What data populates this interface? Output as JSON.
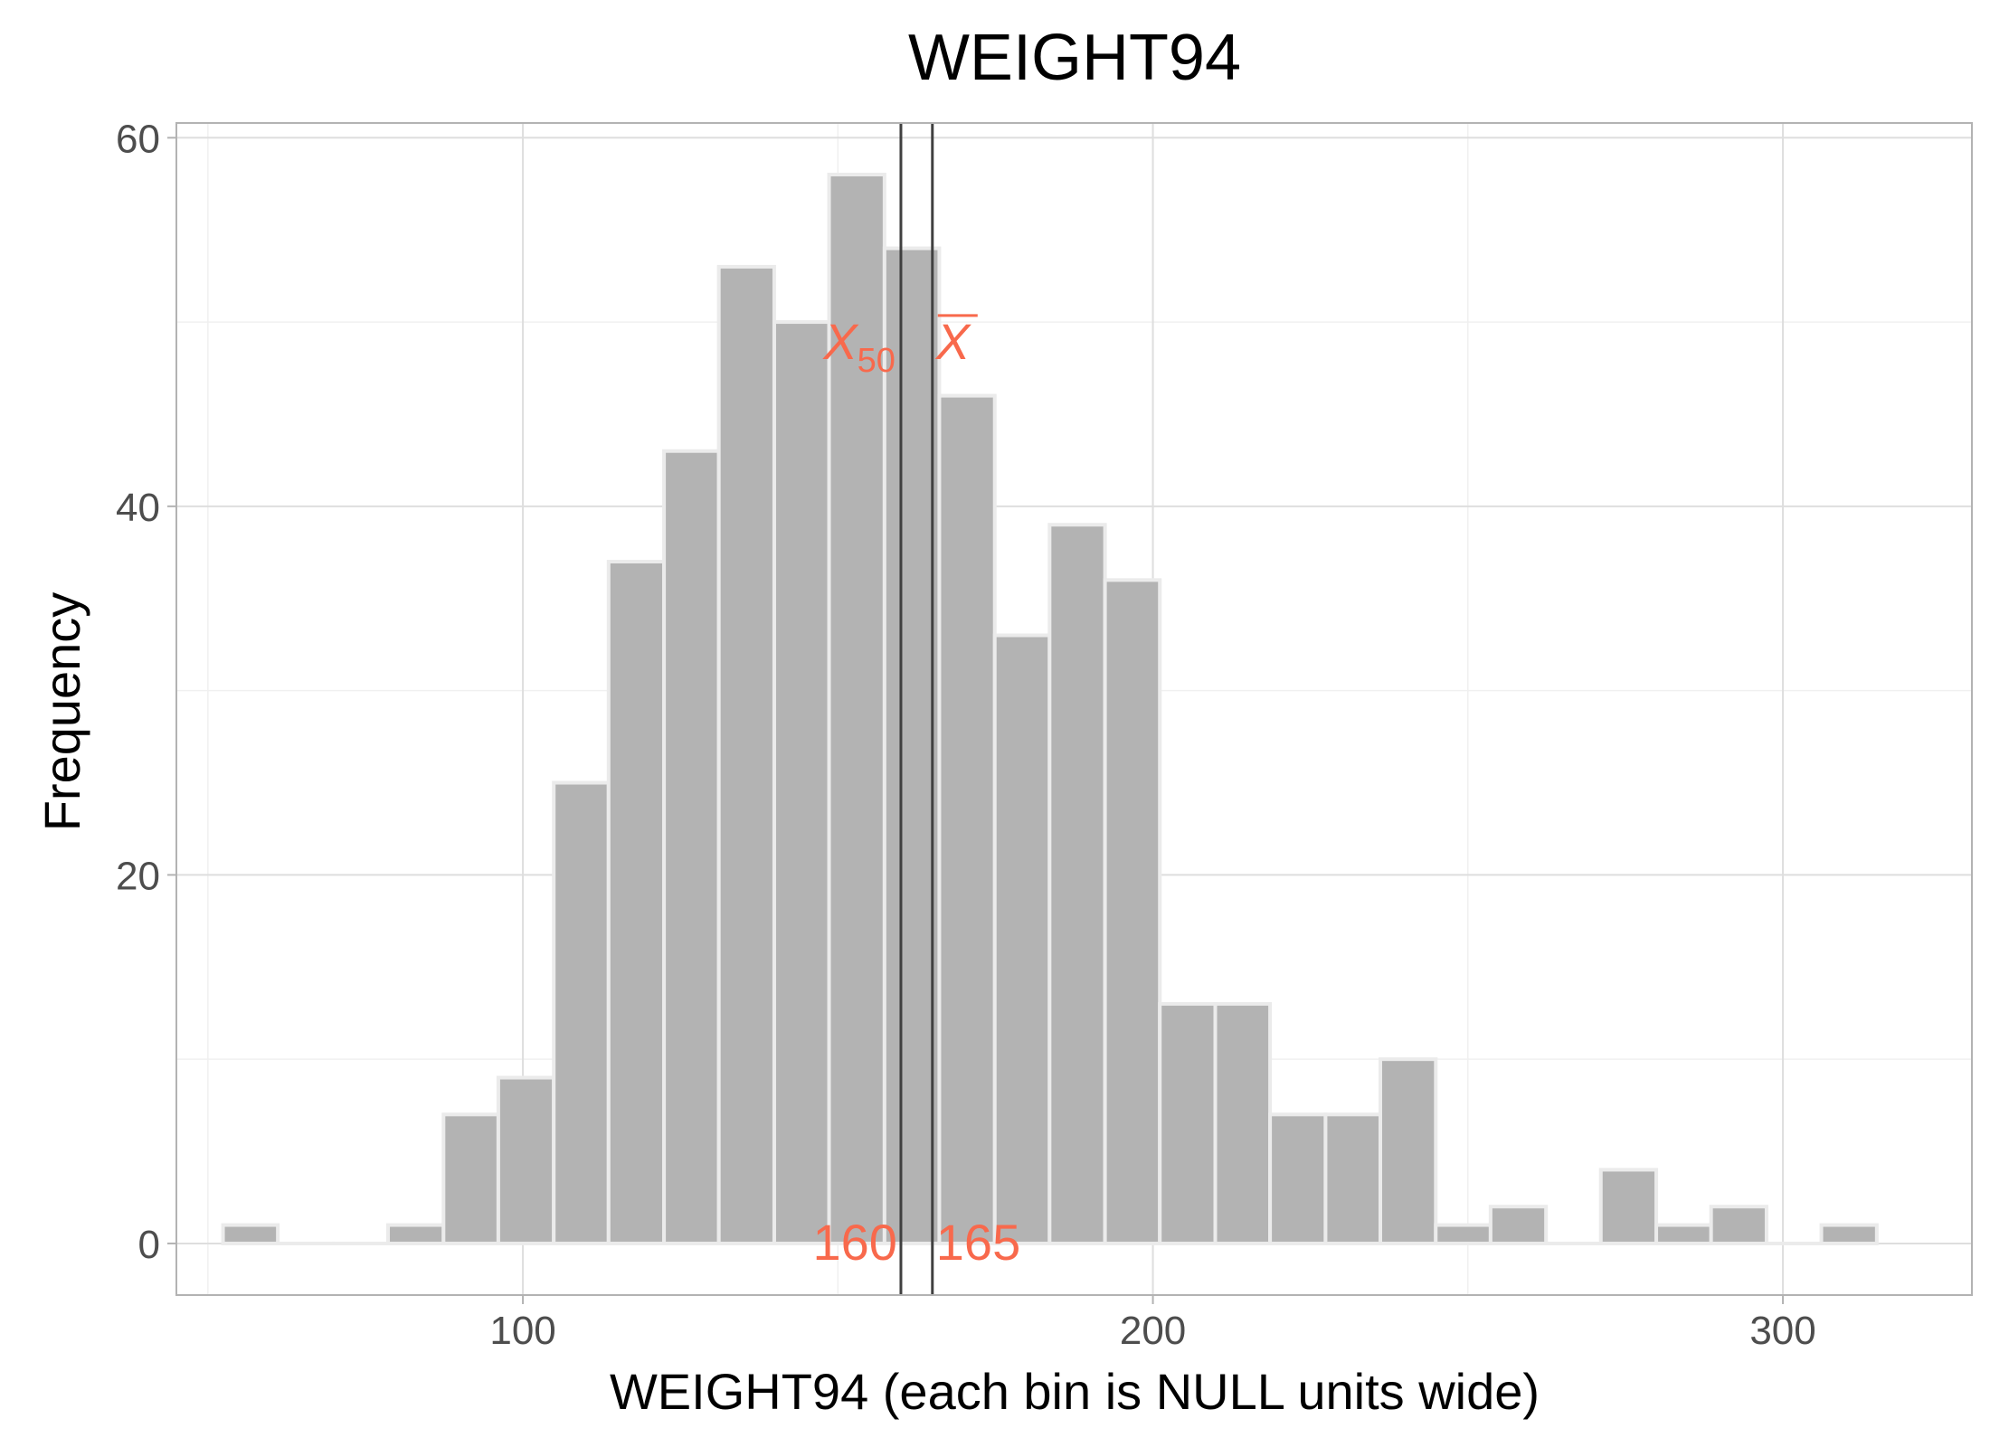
{
  "chart_data": {
    "type": "bar",
    "title": "WEIGHT94",
    "xlabel": "WEIGHT94 (each bin is NULL units wide)",
    "ylabel": "Frequency",
    "xlim": [
      45,
      330
    ],
    "ylim": [
      -2.8,
      60.8
    ],
    "x_ticks": [
      100,
      200,
      300
    ],
    "y_ticks": [
      0,
      20,
      40,
      60
    ],
    "x_minor_ticks": [
      50,
      150,
      250
    ],
    "y_minor_ticks": [
      10,
      30,
      50
    ],
    "grid": true,
    "bin_width": 8.75,
    "bins": [
      {
        "x0": 52.4,
        "x1": 61.1,
        "count": 1
      },
      {
        "x0": 61.1,
        "x1": 69.9,
        "count": 0
      },
      {
        "x0": 69.9,
        "x1": 78.6,
        "count": 0
      },
      {
        "x0": 78.6,
        "x1": 87.4,
        "count": 1
      },
      {
        "x0": 87.4,
        "x1": 96.1,
        "count": 7
      },
      {
        "x0": 96.1,
        "x1": 104.9,
        "count": 9
      },
      {
        "x0": 104.9,
        "x1": 113.6,
        "count": 25
      },
      {
        "x0": 113.6,
        "x1": 122.4,
        "count": 37
      },
      {
        "x0": 122.4,
        "x1": 131.1,
        "count": 43
      },
      {
        "x0": 131.1,
        "x1": 139.9,
        "count": 53
      },
      {
        "x0": 139.9,
        "x1": 148.6,
        "count": 50
      },
      {
        "x0": 148.6,
        "x1": 157.4,
        "count": 58
      },
      {
        "x0": 157.4,
        "x1": 166.1,
        "count": 54
      },
      {
        "x0": 166.1,
        "x1": 174.9,
        "count": 46
      },
      {
        "x0": 174.9,
        "x1": 183.6,
        "count": 33
      },
      {
        "x0": 183.6,
        "x1": 192.4,
        "count": 39
      },
      {
        "x0": 192.4,
        "x1": 201.1,
        "count": 36
      },
      {
        "x0": 201.1,
        "x1": 209.9,
        "count": 13
      },
      {
        "x0": 209.9,
        "x1": 218.6,
        "count": 13
      },
      {
        "x0": 218.6,
        "x1": 227.4,
        "count": 7
      },
      {
        "x0": 227.4,
        "x1": 236.1,
        "count": 7
      },
      {
        "x0": 236.1,
        "x1": 244.9,
        "count": 10
      },
      {
        "x0": 244.9,
        "x1": 253.6,
        "count": 1
      },
      {
        "x0": 253.6,
        "x1": 262.4,
        "count": 2
      },
      {
        "x0": 262.4,
        "x1": 271.1,
        "count": 0
      },
      {
        "x0": 271.1,
        "x1": 279.9,
        "count": 4
      },
      {
        "x0": 279.9,
        "x1": 288.6,
        "count": 1
      },
      {
        "x0": 288.6,
        "x1": 297.4,
        "count": 2
      },
      {
        "x0": 297.4,
        "x1": 306.1,
        "count": 0
      },
      {
        "x0": 306.1,
        "x1": 314.9,
        "count": 1
      }
    ],
    "reference_lines": [
      {
        "id": "median",
        "x": 160,
        "symbol": "X",
        "subscript": "50",
        "overbar": false,
        "value_label": "160"
      },
      {
        "id": "mean",
        "x": 165,
        "symbol": "X",
        "subscript": "",
        "overbar": true,
        "value_label": "165"
      }
    ],
    "colors": {
      "bar_fill": "#b3b3b3",
      "bar_stroke": "#ebebeb",
      "annotation": "#f8694c",
      "reference_line": "#404040",
      "grid_major": "#dedede",
      "grid_minor": "#f0f0f0",
      "panel_border": "#b3b3b3"
    }
  }
}
